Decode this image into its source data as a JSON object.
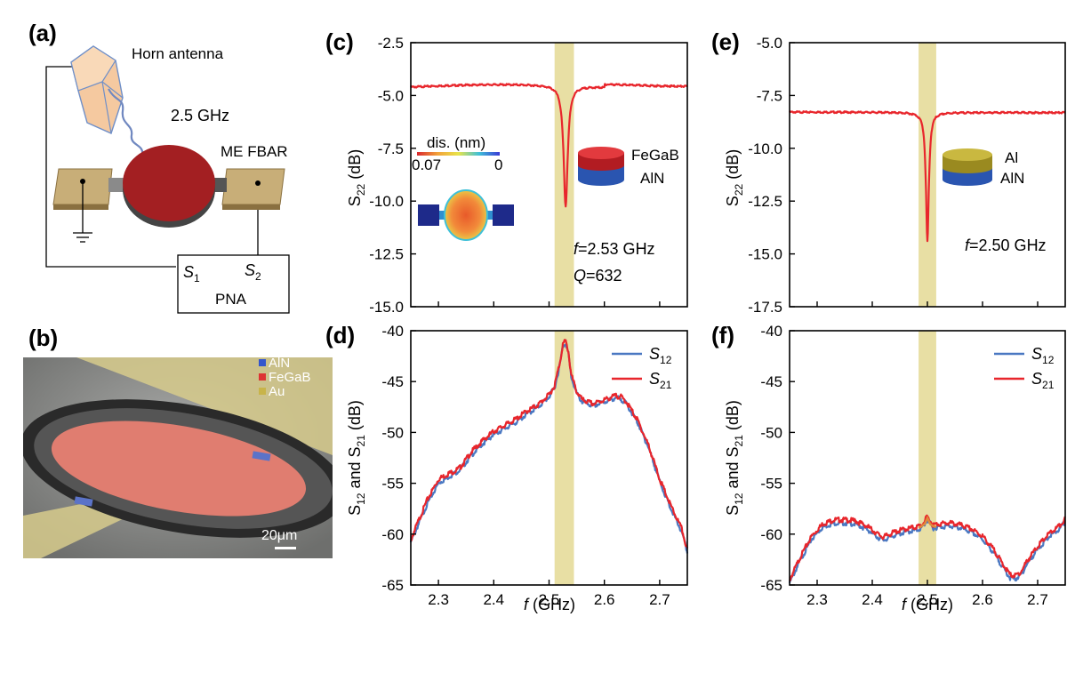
{
  "panels": {
    "a": {
      "label": "(a)",
      "antenna": "Horn antenna",
      "freq": "2.5 GHz",
      "device": "ME FBAR",
      "pna": "PNA",
      "port1": "S",
      "port1_sub": "1",
      "port2": "S",
      "port2_sub": "2"
    },
    "b": {
      "label": "(b)",
      "legend": [
        {
          "name": "AlN",
          "color": "#3355cc"
        },
        {
          "name": "FeGaB",
          "color": "#dd3333"
        },
        {
          "name": "Au",
          "color": "#c8b44a"
        }
      ],
      "scalebar": "20μm"
    },
    "c": {
      "label": "(c)"
    },
    "d": {
      "label": "(d)"
    },
    "e": {
      "label": "(e)"
    },
    "f": {
      "label": "(f)"
    }
  },
  "colors": {
    "red": "#e8262c",
    "blue": "#4a78c2",
    "orange": "#e08a3a",
    "band": "#e8dfa4"
  },
  "chart_data": [
    {
      "id": "c",
      "type": "line",
      "xlim": [
        2.25,
        2.75
      ],
      "ylim": [
        -15.0,
        -2.5
      ],
      "yticks": [
        -15.0,
        -12.5,
        -10.0,
        -7.5,
        -5.0,
        -2.5
      ],
      "ytick_labels": [
        "-15.0",
        "-12.5",
        "-10.0",
        "-7.5",
        "-5.0",
        "-2.5"
      ],
      "xticks": [
        2.3,
        2.4,
        2.5,
        2.6,
        2.7
      ],
      "ylabel": "S",
      "ylabel_sub": "22",
      "ylabel_unit": " (dB)",
      "highlight": [
        2.51,
        2.545
      ],
      "series": [
        {
          "color": "#e8262c",
          "resonance": {
            "f0": 2.53,
            "min": -10.3,
            "baseline": -4.6
          }
        }
      ],
      "annotations": {
        "freq_var": "f",
        "freq_text": "=2.53 GHz",
        "q_var": "Q",
        "q_text": "=632",
        "layer_top": "FeGaB",
        "layer_bottom": "AlN",
        "inset_title": "dis. (nm)",
        "inset_max": "0.07",
        "inset_min": "0"
      }
    },
    {
      "id": "d",
      "type": "line",
      "xlim": [
        2.25,
        2.75
      ],
      "ylim": [
        -65,
        -40
      ],
      "yticks": [
        -65,
        -60,
        -55,
        -50,
        -45,
        -40
      ],
      "ytick_labels": [
        "-65",
        "-60",
        "-55",
        "-50",
        "-45",
        "-40"
      ],
      "xticks": [
        2.3,
        2.4,
        2.5,
        2.6,
        2.7
      ],
      "xtick_labels": [
        "2.3",
        "2.4",
        "2.5",
        "2.6",
        "2.7"
      ],
      "xlabel_var": "f",
      "xlabel": " (GHz)",
      "ylabel_pre": "S",
      "ylabel_sub1": "12",
      "ylabel_mid": " and S",
      "ylabel_sub2": "21",
      "ylabel_unit": " (dB)",
      "highlight": [
        2.51,
        2.545
      ],
      "legend": [
        {
          "name": "S",
          "sub": "12",
          "color": "#4a78c2"
        },
        {
          "name": "S",
          "sub": "21",
          "color": "#e8262c"
        }
      ],
      "series": [
        {
          "name": "S12",
          "color": "#4a78c2",
          "x": [
            2.25,
            2.26,
            2.28,
            2.3,
            2.32,
            2.33,
            2.34,
            2.36,
            2.38,
            2.4,
            2.42,
            2.44,
            2.46,
            2.48,
            2.5,
            2.51,
            2.52,
            2.525,
            2.53,
            2.535,
            2.54,
            2.55,
            2.56,
            2.58,
            2.6,
            2.62,
            2.63,
            2.64,
            2.66,
            2.68,
            2.7,
            2.72,
            2.74,
            2.75
          ],
          "y": [
            -60.8,
            -59.5,
            -57.0,
            -55.0,
            -54.3,
            -54.0,
            -53.6,
            -52.2,
            -51.1,
            -50.2,
            -49.6,
            -49.0,
            -48.2,
            -47.5,
            -46.5,
            -45.6,
            -43.2,
            -41.5,
            -41.2,
            -42.3,
            -44.5,
            -46.2,
            -47.0,
            -47.4,
            -47.0,
            -46.6,
            -46.7,
            -47.2,
            -49.0,
            -51.5,
            -54.8,
            -57.5,
            -59.8,
            -61.8
          ]
        },
        {
          "name": "S21",
          "color": "#e8262c",
          "x": [
            2.25,
            2.26,
            2.28,
            2.3,
            2.32,
            2.33,
            2.34,
            2.36,
            2.38,
            2.4,
            2.42,
            2.44,
            2.46,
            2.48,
            2.5,
            2.51,
            2.52,
            2.525,
            2.53,
            2.535,
            2.54,
            2.55,
            2.56,
            2.58,
            2.6,
            2.62,
            2.63,
            2.64,
            2.66,
            2.68,
            2.7,
            2.72,
            2.74,
            2.75
          ],
          "y": [
            -60.6,
            -59.2,
            -56.6,
            -54.6,
            -54.0,
            -53.8,
            -53.4,
            -51.9,
            -50.8,
            -49.9,
            -49.3,
            -48.7,
            -47.9,
            -47.3,
            -46.3,
            -45.4,
            -43.0,
            -41.3,
            -41.0,
            -42.1,
            -44.3,
            -46.0,
            -46.8,
            -47.2,
            -46.8,
            -46.4,
            -46.5,
            -47.0,
            -48.8,
            -51.3,
            -54.6,
            -57.2,
            -59.5,
            -61.6
          ]
        }
      ]
    },
    {
      "id": "e",
      "type": "line",
      "xlim": [
        2.25,
        2.75
      ],
      "ylim": [
        -17.5,
        -5.0
      ],
      "yticks": [
        -17.5,
        -15.0,
        -12.5,
        -10.0,
        -7.5,
        -5.0
      ],
      "ytick_labels": [
        "-17.5",
        "-15.0",
        "-12.5",
        "-10.0",
        "-7.5",
        "-5.0"
      ],
      "xticks": [
        2.3,
        2.4,
        2.5,
        2.6,
        2.7
      ],
      "ylabel": "S",
      "ylabel_sub": "22",
      "ylabel_unit": " (dB)",
      "highlight": [
        2.484,
        2.516
      ],
      "series": [
        {
          "color": "#e8262c",
          "resonance": {
            "f0": 2.5,
            "min": -14.4,
            "baseline": -8.3
          }
        }
      ],
      "annotations": {
        "freq_var": "f",
        "freq_text": "=2.50 GHz",
        "layer_top": "Al",
        "layer_bottom": "AlN"
      }
    },
    {
      "id": "f",
      "type": "line",
      "xlim": [
        2.25,
        2.75
      ],
      "ylim": [
        -65,
        -40
      ],
      "yticks": [
        -65,
        -60,
        -55,
        -50,
        -45,
        -40
      ],
      "ytick_labels": [
        "-65",
        "-60",
        "-55",
        "-50",
        "-45",
        "-40"
      ],
      "xticks": [
        2.3,
        2.4,
        2.5,
        2.6,
        2.7
      ],
      "xtick_labels": [
        "2.3",
        "2.4",
        "2.5",
        "2.6",
        "2.7"
      ],
      "xlabel_var": "f",
      "xlabel": " (GHz)",
      "ylabel_pre": "S",
      "ylabel_sub1": "12",
      "ylabel_mid": " and S",
      "ylabel_sub2": "21",
      "ylabel_unit": " (dB)",
      "highlight": [
        2.484,
        2.516
      ],
      "legend": [
        {
          "name": "S",
          "sub": "12",
          "color": "#4a78c2"
        },
        {
          "name": "S",
          "sub": "21",
          "color": "#e8262c"
        }
      ],
      "series": [
        {
          "name": "S12",
          "color": "#4a78c2",
          "x": [
            2.25,
            2.27,
            2.29,
            2.31,
            2.33,
            2.35,
            2.37,
            2.39,
            2.41,
            2.42,
            2.44,
            2.46,
            2.48,
            2.49,
            2.5,
            2.51,
            2.52,
            2.54,
            2.56,
            2.58,
            2.6,
            2.62,
            2.64,
            2.65,
            2.66,
            2.67,
            2.68,
            2.7,
            2.72,
            2.74,
            2.75
          ],
          "y": [
            -64.8,
            -62.5,
            -60.5,
            -59.3,
            -58.9,
            -58.9,
            -59.0,
            -59.5,
            -60.3,
            -60.6,
            -60.1,
            -59.8,
            -59.6,
            -59.4,
            -58.6,
            -59.4,
            -59.3,
            -59.2,
            -59.4,
            -59.8,
            -60.5,
            -61.8,
            -63.5,
            -64.3,
            -64.4,
            -64.0,
            -63.0,
            -61.5,
            -60.3,
            -59.5,
            -58.8
          ]
        },
        {
          "name": "S21",
          "color": "#e8262c",
          "x": [
            2.25,
            2.27,
            2.29,
            2.31,
            2.33,
            2.35,
            2.37,
            2.39,
            2.41,
            2.42,
            2.44,
            2.46,
            2.48,
            2.49,
            2.5,
            2.51,
            2.52,
            2.54,
            2.56,
            2.58,
            2.6,
            2.62,
            2.64,
            2.65,
            2.66,
            2.67,
            2.68,
            2.7,
            2.72,
            2.74,
            2.75
          ],
          "y": [
            -64.5,
            -62.2,
            -60.2,
            -59.0,
            -58.6,
            -58.6,
            -58.7,
            -59.2,
            -60.0,
            -60.3,
            -59.8,
            -59.5,
            -59.3,
            -59.1,
            -58.3,
            -59.1,
            -59.0,
            -58.9,
            -59.1,
            -59.5,
            -60.2,
            -61.5,
            -63.2,
            -64.0,
            -64.1,
            -63.7,
            -62.7,
            -61.2,
            -60.0,
            -59.2,
            -58.5
          ]
        }
      ]
    }
  ]
}
